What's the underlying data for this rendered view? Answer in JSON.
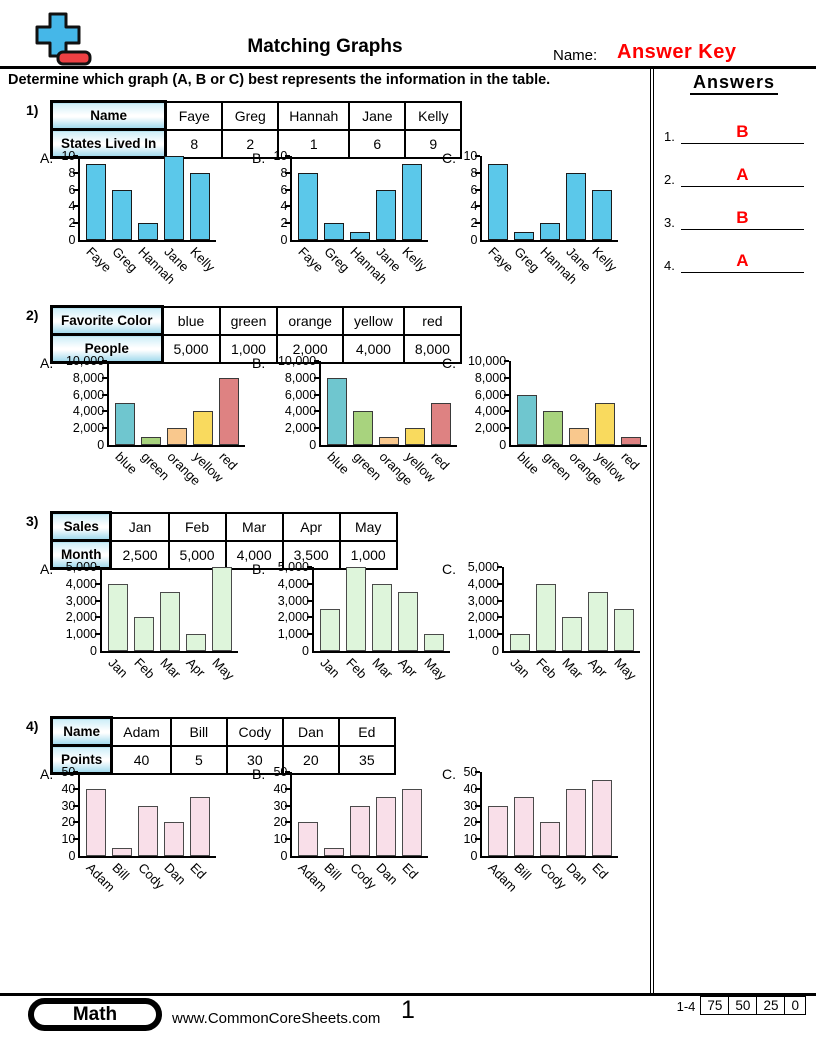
{
  "header": {
    "title": "Matching Graphs",
    "name_label": "Name:",
    "name_value": "Answer Key",
    "instruction": "Determine which graph (A, B or C) best represents the information in the table."
  },
  "answers_panel": {
    "title": "Answers",
    "items": [
      {
        "num": "1.",
        "letter": "B"
      },
      {
        "num": "2.",
        "letter": "A"
      },
      {
        "num": "3.",
        "letter": "B"
      },
      {
        "num": "4.",
        "letter": "A"
      }
    ]
  },
  "colors": {
    "answer_red": "#ff0000",
    "logo_plus_blue": "#45b7e8",
    "logo_minus_red": "#ee4043",
    "table_header_blue": "#cdeef8"
  },
  "problems": [
    {
      "number": "1)",
      "table": {
        "row1_label": "Name",
        "row2_label": "States Lived In",
        "columns": [
          "Faye",
          "Greg",
          "Hannah",
          "Jane",
          "Kelly"
        ],
        "values": [
          "8",
          "2",
          "1",
          "6",
          "9"
        ]
      },
      "chart_data": {
        "type": "bar",
        "categories": [
          "Faye",
          "Greg",
          "Hannah",
          "Jane",
          "Kelly"
        ],
        "ylim": [
          0,
          10
        ],
        "yticks": [
          0,
          2,
          4,
          6,
          8,
          10
        ],
        "ytick_labels": [
          "0",
          "2",
          "4",
          "6",
          "8",
          "10"
        ],
        "bar_fill": "#5bc8ea",
        "bar_border": "#1a1a1a",
        "graphs": [
          {
            "label": "A.",
            "values": [
              9,
              6,
              2,
              10,
              8
            ]
          },
          {
            "label": "B.",
            "values": [
              8,
              2,
              1,
              6,
              9
            ]
          },
          {
            "label": "C.",
            "values": [
              9,
              1,
              2,
              8,
              6
            ]
          }
        ]
      }
    },
    {
      "number": "2)",
      "table": {
        "row1_label": "Favorite Color",
        "row2_label": "People",
        "columns": [
          "blue",
          "green",
          "orange",
          "yellow",
          "red"
        ],
        "values": [
          "5,000",
          "1,000",
          "2,000",
          "4,000",
          "8,000"
        ]
      },
      "chart_data": {
        "type": "bar",
        "categories": [
          "blue",
          "green",
          "orange",
          "yellow",
          "red"
        ],
        "ylim": [
          0,
          10000
        ],
        "yticks": [
          0,
          2000,
          4000,
          6000,
          8000,
          10000
        ],
        "ytick_labels": [
          "0",
          "2,000",
          "4,000",
          "6,000",
          "8,000",
          "10,000"
        ],
        "bar_fills": [
          "#6fc6cf",
          "#a8d37e",
          "#f9c88d",
          "#f9da5e",
          "#de8282"
        ],
        "bar_border": "#3a3a3a",
        "graphs": [
          {
            "label": "A.",
            "values": [
              5000,
              1000,
              2000,
              4000,
              8000
            ]
          },
          {
            "label": "B.",
            "values": [
              8000,
              4000,
              1000,
              2000,
              5000
            ]
          },
          {
            "label": "C.",
            "values": [
              6000,
              4000,
              2000,
              5000,
              1000
            ]
          }
        ]
      }
    },
    {
      "number": "3)",
      "table": {
        "row1_label": "Sales",
        "row2_label": "Month",
        "columns": [
          "Jan",
          "Feb",
          "Mar",
          "Apr",
          "May"
        ],
        "values": [
          "2,500",
          "5,000",
          "4,000",
          "3,500",
          "1,000"
        ]
      },
      "chart_data": {
        "type": "bar",
        "categories": [
          "Jan",
          "Feb",
          "Mar",
          "Apr",
          "May"
        ],
        "ylim": [
          0,
          5000
        ],
        "yticks": [
          0,
          1000,
          2000,
          3000,
          4000,
          5000
        ],
        "ytick_labels": [
          "0",
          "1,000",
          "2,000",
          "3,000",
          "4,000",
          "5,000"
        ],
        "bar_fill": "#def5db",
        "bar_border": "#4a4a4a",
        "graphs": [
          {
            "label": "A.",
            "values": [
              4000,
              2000,
              3500,
              1000,
              5000
            ]
          },
          {
            "label": "B.",
            "values": [
              2500,
              5000,
              4000,
              3500,
              1000
            ]
          },
          {
            "label": "C.",
            "values": [
              1000,
              4000,
              2000,
              3500,
              2500
            ]
          }
        ]
      }
    },
    {
      "number": "4)",
      "table": {
        "row1_label": "Name",
        "row2_label": "Points",
        "columns": [
          "Adam",
          "Bill",
          "Cody",
          "Dan",
          "Ed"
        ],
        "values": [
          "40",
          "5",
          "30",
          "20",
          "35"
        ]
      },
      "chart_data": {
        "type": "bar",
        "categories": [
          "Adam",
          "Bill",
          "Cody",
          "Dan",
          "Ed"
        ],
        "ylim": [
          0,
          50
        ],
        "yticks": [
          0,
          10,
          20,
          30,
          40,
          50
        ],
        "ytick_labels": [
          "0",
          "10",
          "20",
          "30",
          "40",
          "50"
        ],
        "bar_fill": "#f9dfe9",
        "bar_border": "#4a4a4a",
        "graphs": [
          {
            "label": "A.",
            "values": [
              40,
              5,
              30,
              20,
              35
            ]
          },
          {
            "label": "B.",
            "values": [
              20,
              5,
              30,
              35,
              40
            ]
          },
          {
            "label": "C.",
            "values": [
              30,
              35,
              20,
              40,
              45
            ]
          }
        ]
      }
    }
  ],
  "footer": {
    "subject": "Math",
    "website": "www.CommonCoreSheets.com",
    "page": "1",
    "score_label": "1-4",
    "score_cells": [
      "75",
      "50",
      "25",
      "0"
    ]
  }
}
